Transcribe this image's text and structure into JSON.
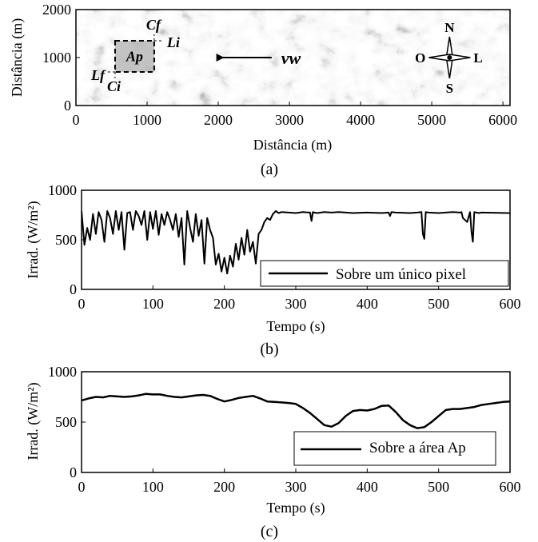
{
  "chart_data": [
    {
      "type": "heatmap",
      "caption": "(a)",
      "xlabel": "Distância (m)",
      "ylabel": "Distância (m)",
      "xlim": [
        0,
        6100
      ],
      "ylim": [
        0,
        2000
      ],
      "x_ticks": [
        "0",
        "1000",
        "2000",
        "3000",
        "4000",
        "5000",
        "6000"
      ],
      "y_ticks": [
        "0",
        "1000",
        "2000"
      ],
      "annotations": {
        "region": "Ap",
        "cf": "Cf",
        "ci": "Ci",
        "li": "Li",
        "lf": "Lf",
        "wind": "vw"
      },
      "compass": {
        "n": "N",
        "s": "S",
        "o": "O",
        "l": "L"
      },
      "region_box": {
        "x0": 550,
        "x1": 1100,
        "y0": 700,
        "y1": 1350
      },
      "wind_arrow": {
        "x_from": 2750,
        "x_to": 1950,
        "y": 1000
      },
      "compass_center": {
        "x": 5250,
        "y": 1000
      }
    },
    {
      "type": "line",
      "caption": "(b)",
      "xlabel": "Tempo (s)",
      "ylabel": "Irrad. (W/m²)",
      "xlim": [
        0,
        600
      ],
      "ylim": [
        0,
        1000
      ],
      "x_ticks": [
        "0",
        "100",
        "200",
        "300",
        "400",
        "500",
        "600"
      ],
      "y_ticks": [
        "0",
        "500",
        "1000"
      ],
      "legend_position": "lower-right",
      "series": [
        {
          "name": "Sobre um único pixel",
          "x": [
            0,
            4,
            8,
            12,
            16,
            20,
            24,
            28,
            32,
            36,
            40,
            44,
            48,
            52,
            56,
            60,
            64,
            68,
            72,
            76,
            80,
            84,
            88,
            92,
            96,
            100,
            104,
            108,
            112,
            116,
            120,
            124,
            128,
            132,
            136,
            140,
            144,
            148,
            152,
            156,
            160,
            164,
            168,
            172,
            176,
            180,
            184,
            188,
            192,
            196,
            200,
            204,
            208,
            212,
            216,
            220,
            224,
            228,
            232,
            236,
            240,
            244,
            248,
            252,
            256,
            260,
            264,
            268,
            272,
            276,
            280,
            290,
            300,
            310,
            320,
            322,
            324,
            326,
            330,
            340,
            350,
            360,
            380,
            400,
            420,
            430,
            432,
            434,
            440,
            460,
            470,
            476,
            478,
            480,
            482,
            486,
            500,
            520,
            530,
            532,
            534,
            540,
            544,
            546,
            548,
            550,
            556,
            560,
            600
          ],
          "y": [
            790,
            450,
            620,
            500,
            760,
            560,
            780,
            700,
            480,
            790,
            720,
            560,
            790,
            600,
            780,
            400,
            770,
            780,
            600,
            790,
            740,
            650,
            790,
            500,
            780,
            610,
            790,
            550,
            760,
            650,
            780,
            700,
            600,
            760,
            530,
            720,
            250,
            790,
            620,
            480,
            760,
            540,
            700,
            260,
            720,
            600,
            520,
            250,
            360,
            180,
            320,
            160,
            340,
            230,
            460,
            300,
            520,
            350,
            600,
            380,
            480,
            260,
            560,
            600,
            680,
            720,
            700,
            760,
            790,
            770,
            780,
            775,
            770,
            780,
            775,
            690,
            780,
            775,
            770,
            780,
            775,
            780,
            770,
            775,
            770,
            775,
            740,
            780,
            775,
            770,
            775,
            780,
            560,
            510,
            780,
            775,
            770,
            780,
            775,
            780,
            720,
            680,
            780,
            580,
            480,
            780,
            770,
            775,
            770
          ]
        }
      ]
    },
    {
      "type": "line",
      "caption": "(c)",
      "xlabel": "Tempo (s)",
      "ylabel": "Irrad. (W/m²)",
      "xlim": [
        0,
        600
      ],
      "ylim": [
        0,
        1000
      ],
      "x_ticks": [
        "0",
        "100",
        "200",
        "300",
        "400",
        "500",
        "600"
      ],
      "y_ticks": [
        "0",
        "500",
        "1000"
      ],
      "legend_position": "lower-right",
      "series": [
        {
          "name": "Sobre a área Ap",
          "x": [
            0,
            10,
            20,
            30,
            40,
            50,
            60,
            70,
            80,
            90,
            100,
            110,
            120,
            130,
            140,
            150,
            160,
            170,
            180,
            190,
            200,
            210,
            220,
            230,
            240,
            250,
            260,
            270,
            280,
            290,
            300,
            310,
            320,
            330,
            340,
            350,
            360,
            370,
            380,
            390,
            400,
            410,
            420,
            430,
            440,
            450,
            460,
            470,
            480,
            490,
            500,
            510,
            520,
            530,
            540,
            550,
            560,
            570,
            580,
            590,
            600
          ],
          "y": [
            715,
            735,
            750,
            745,
            760,
            755,
            750,
            755,
            765,
            780,
            775,
            775,
            760,
            750,
            745,
            755,
            765,
            770,
            760,
            730,
            705,
            720,
            740,
            750,
            760,
            735,
            705,
            700,
            695,
            690,
            680,
            640,
            590,
            530,
            470,
            455,
            490,
            560,
            610,
            620,
            615,
            630,
            660,
            665,
            600,
            520,
            470,
            440,
            450,
            500,
            560,
            620,
            630,
            630,
            640,
            650,
            670,
            680,
            690,
            700,
            705
          ]
        }
      ]
    }
  ]
}
